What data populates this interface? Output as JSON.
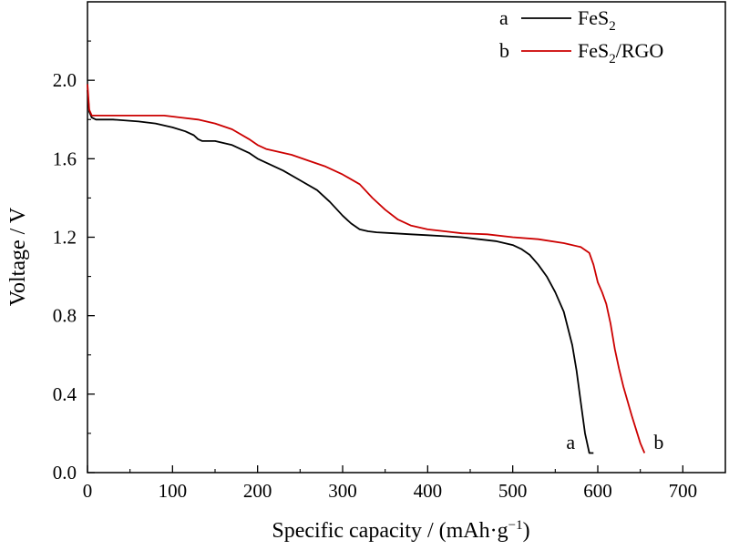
{
  "chart_data": {
    "type": "line",
    "xlabel": "Specific capacity / (mAh·g",
    "xlabel_sup": "−1",
    "xlabel_end": ")",
    "ylabel": "Voltage / V",
    "xlim": [
      0,
      750
    ],
    "ylim": [
      0,
      2.4
    ],
    "xticks": [
      0,
      100,
      200,
      300,
      400,
      500,
      600,
      700
    ],
    "xtick_labels": [
      "0",
      "100",
      "200",
      "300",
      "400",
      "500",
      "600",
      "700"
    ],
    "yticks": [
      0,
      0.4,
      0.8,
      1.2,
      1.6,
      2.0
    ],
    "ytick_labels": [
      "0.0",
      "0.4",
      "0.8",
      "1.2",
      "1.6",
      "2.0"
    ],
    "grid": false,
    "legend_position": "top-right",
    "series": [
      {
        "id": "a",
        "letter": "a",
        "name_main": "FeS",
        "name_sub": "2",
        "name_tail": "",
        "end_label": "a",
        "color": "#000000",
        "x": [
          0,
          2,
          5,
          10,
          30,
          60,
          80,
          100,
          115,
          125,
          130,
          135,
          150,
          170,
          190,
          200,
          215,
          230,
          250,
          270,
          285,
          300,
          310,
          320,
          330,
          340,
          360,
          380,
          400,
          420,
          440,
          460,
          480,
          500,
          510,
          520,
          530,
          540,
          550,
          560,
          570,
          575,
          580,
          585,
          590,
          595
        ],
        "y": [
          1.95,
          1.84,
          1.81,
          1.8,
          1.8,
          1.79,
          1.78,
          1.76,
          1.74,
          1.72,
          1.7,
          1.69,
          1.69,
          1.67,
          1.63,
          1.6,
          1.57,
          1.54,
          1.49,
          1.44,
          1.38,
          1.31,
          1.27,
          1.24,
          1.23,
          1.225,
          1.22,
          1.215,
          1.21,
          1.205,
          1.2,
          1.19,
          1.18,
          1.16,
          1.14,
          1.11,
          1.06,
          1.0,
          0.92,
          0.82,
          0.65,
          0.52,
          0.36,
          0.2,
          0.1,
          0.1
        ]
      },
      {
        "id": "b",
        "letter": "b",
        "name_main": "FeS",
        "name_sub": "2",
        "name_tail": "/RGO",
        "end_label": "b",
        "color": "#cc0000",
        "x": [
          0,
          2,
          5,
          10,
          30,
          60,
          90,
          110,
          130,
          150,
          170,
          190,
          200,
          210,
          220,
          240,
          260,
          280,
          300,
          320,
          335,
          350,
          365,
          380,
          400,
          420,
          440,
          470,
          500,
          530,
          560,
          580,
          590,
          595,
          600,
          605,
          610,
          615,
          620,
          625,
          630,
          640,
          650,
          655
        ],
        "y": [
          1.98,
          1.85,
          1.82,
          1.82,
          1.82,
          1.82,
          1.82,
          1.81,
          1.8,
          1.78,
          1.75,
          1.7,
          1.67,
          1.65,
          1.64,
          1.62,
          1.59,
          1.56,
          1.52,
          1.47,
          1.4,
          1.34,
          1.29,
          1.26,
          1.24,
          1.23,
          1.22,
          1.215,
          1.2,
          1.19,
          1.17,
          1.15,
          1.12,
          1.06,
          0.97,
          0.92,
          0.86,
          0.76,
          0.63,
          0.53,
          0.44,
          0.29,
          0.15,
          0.1
        ]
      }
    ]
  }
}
